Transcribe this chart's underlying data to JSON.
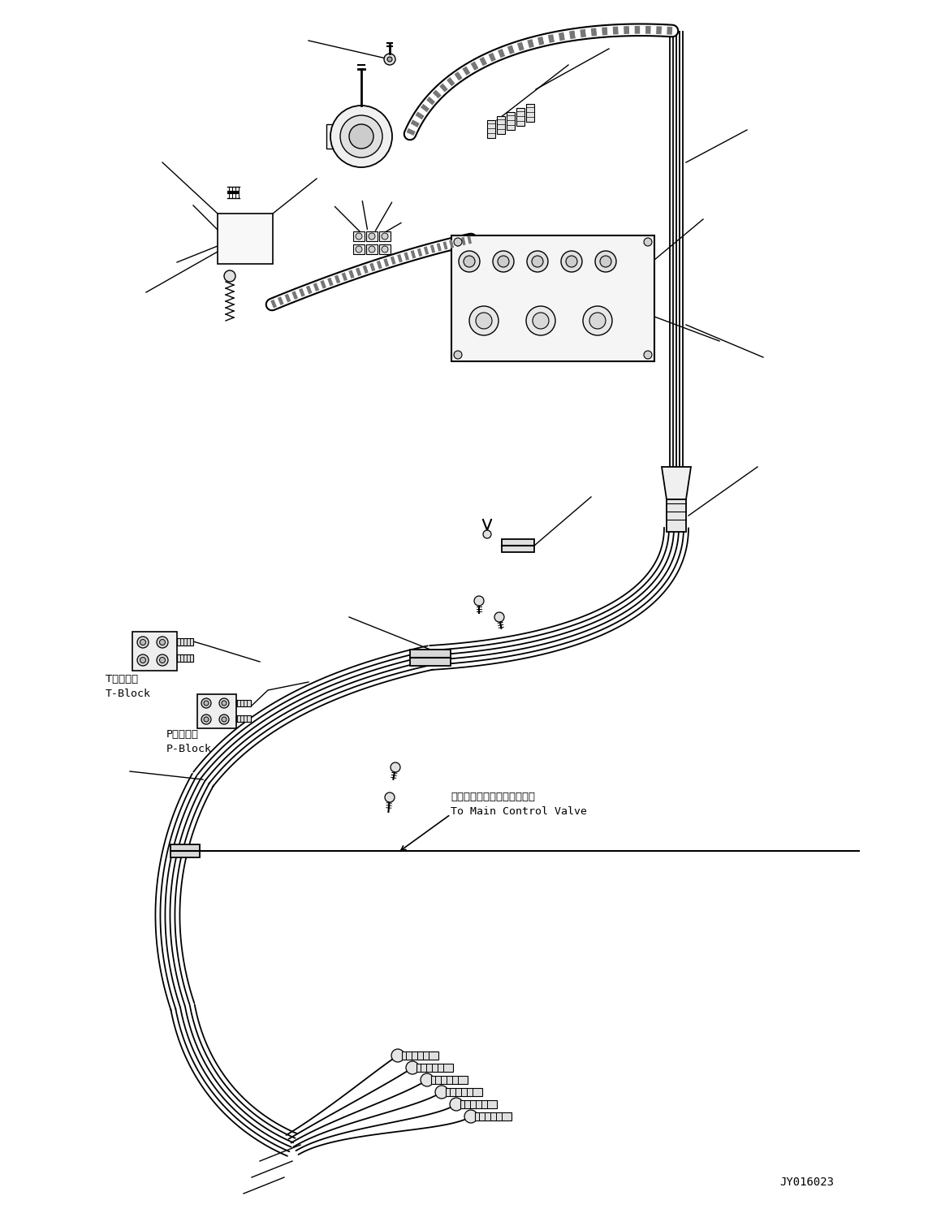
{
  "background_color": "#ffffff",
  "fig_width": 11.43,
  "fig_height": 14.89,
  "dpi": 100,
  "part_code": "JY016023",
  "label_t_block_jp": "Tブロック",
  "label_t_block_en": "T-Block",
  "label_p_block_jp": "Pブロック",
  "label_p_block_en": "P-Block",
  "label_main_valve_jp": "メインコントロールバルブへ",
  "label_main_valve_en": "To Main Control Valve",
  "line_color": "#000000",
  "lw": 1.2,
  "lw_thin": 0.7,
  "lw_thick": 2.0
}
